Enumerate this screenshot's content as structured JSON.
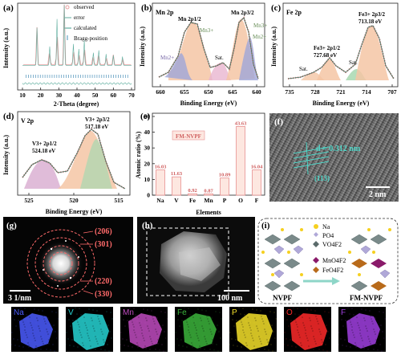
{
  "panel_a": {
    "label": "(a)",
    "xlabel": "2-Theta (degree)",
    "ylabel": "Intensity (a.u.)",
    "legend": [
      "observed",
      "error",
      "calculated",
      "Bragg-position"
    ],
    "xticks": [
      "10",
      "20",
      "30",
      "40",
      "50",
      "60",
      "70"
    ],
    "colors": {
      "observed": "#e8a0a0",
      "calculated": "#5fae9f",
      "error": "#5fae9f",
      "bragg": "#4a90b8"
    }
  },
  "panel_b": {
    "label": "(b)",
    "element": "Mn 2p",
    "xlabel": "Binding Energy (eV)",
    "ylabel": "Intensity (a.u.)",
    "xticks": [
      "660",
      "655",
      "650",
      "645",
      "640"
    ],
    "annotations": [
      "Mn 2p1/2",
      "Mn 2p3/2",
      "Mn3+",
      "Mn2+",
      "Mn3+",
      "Mn2+",
      "Sat."
    ]
  },
  "panel_c": {
    "label": "(c)",
    "element": "Fe 2p",
    "xlabel": "Binding Energy (eV)",
    "ylabel": "Intensity (a.u.)",
    "xticks": [
      "735",
      "728",
      "721",
      "714",
      "707"
    ],
    "annotations": [
      "Fe3+ 2p1/2",
      "727.68 eV",
      "Fe3+ 2p3/2",
      "713.18 eV",
      "Sat.",
      "Sat."
    ]
  },
  "panel_d": {
    "label": "(d)",
    "element": "V 2p",
    "xlabel": "Binding Energy (eV)",
    "ylabel": "Intensity (a.u.)",
    "xticks": [
      "525",
      "520",
      "515"
    ],
    "annotations": [
      "V3+ 2p1/2",
      "524.18 eV",
      "V3+ 2p3/2",
      "517.18 eV"
    ]
  },
  "panel_e": {
    "label": "(e)",
    "legend": "FM-NVPF",
    "chart_data": {
      "type": "bar",
      "categories": [
        "Na",
        "V",
        "Fe",
        "Mn",
        "P",
        "O",
        "F"
      ],
      "values": [
        16.03,
        11.63,
        0.92,
        0.87,
        10.89,
        43.63,
        16.04
      ],
      "value_labels": [
        "16.03",
        "11.63",
        "0.92",
        "0.87",
        "10.89",
        "43.63",
        "16.04"
      ],
      "xlabel": "Elements",
      "ylabel": "Atomic ratio (%)",
      "yticks": [
        "0",
        "10",
        "20",
        "30",
        "40",
        "50"
      ],
      "ylim": [
        0,
        50
      ]
    }
  },
  "panel_f": {
    "label": "(f)",
    "d_spacing": "d = 0.312 nm",
    "plane": "(113)",
    "scale": "2 nm"
  },
  "panel_g": {
    "label": "(g)",
    "rings": [
      "(206)",
      "(301)",
      "(220)",
      "(330)"
    ],
    "scale": "3 1/nm"
  },
  "panel_h": {
    "label": "(h)",
    "scale": "100 nm"
  },
  "panel_i": {
    "label": "(i)",
    "legend": [
      "Na",
      "PO4",
      "VO4F2",
      "MnO4F2",
      "FeO4F2"
    ],
    "left_label": "NVPF",
    "right_label": "FM-NVPF"
  },
  "maps": [
    {
      "element": "Na",
      "color": "#4b5cff"
    },
    {
      "element": "V",
      "color": "#27d4d4"
    },
    {
      "element": "Mn",
      "color": "#c04bc0"
    },
    {
      "element": "Fe",
      "color": "#3cb43c"
    },
    {
      "element": "P",
      "color": "#f5e02a"
    },
    {
      "element": "O",
      "color": "#ff2a2a"
    },
    {
      "element": "F",
      "color": "#a040e0"
    }
  ]
}
